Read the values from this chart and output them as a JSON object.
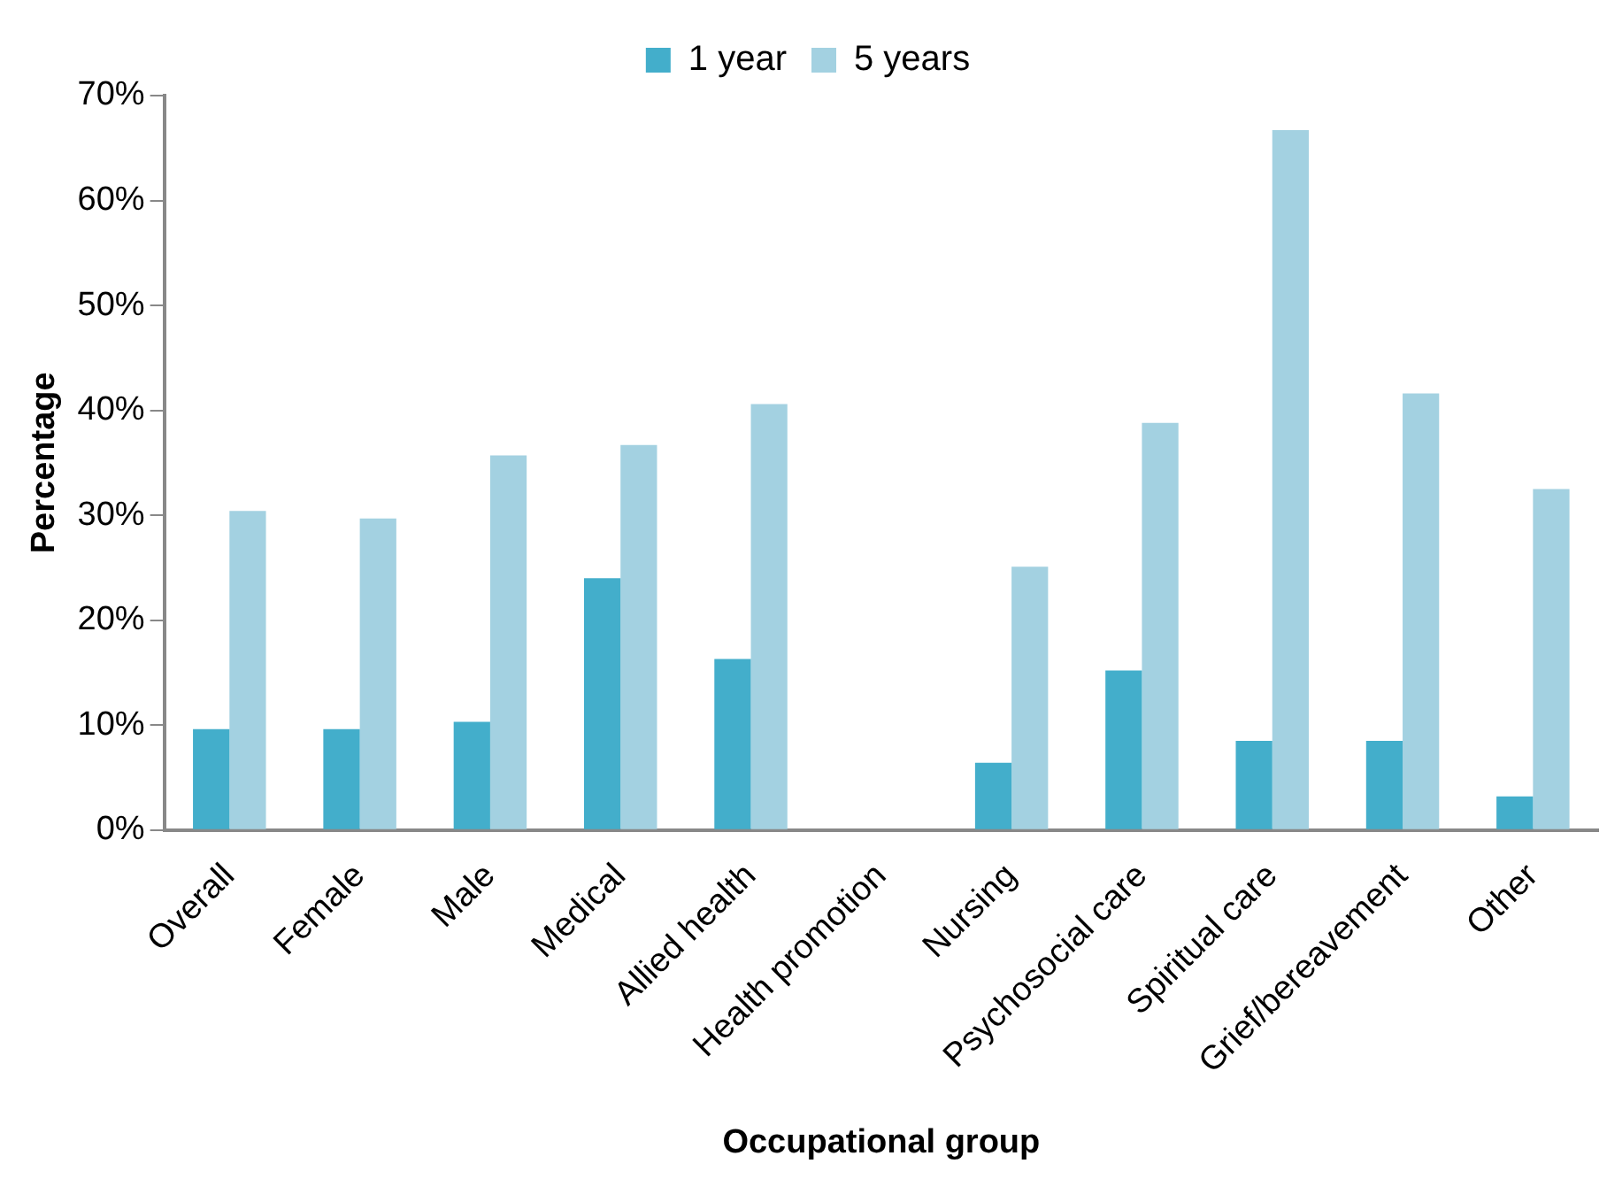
{
  "chart_data": {
    "type": "bar",
    "xlabel": "Occupational group",
    "ylabel": "Percentage",
    "categories": [
      "Overall",
      "Female",
      "Male",
      "Medical",
      "Allied health",
      "Health promotion",
      "Nursing",
      "Psychosocial care",
      "Spiritual care",
      "Grief/bereavement",
      "Other"
    ],
    "series": [
      {
        "name": "1 year",
        "color": "#43aecb",
        "values": [
          9.6,
          9.6,
          10.3,
          24.0,
          16.3,
          0,
          6.4,
          15.2,
          8.5,
          8.5,
          3.2
        ]
      },
      {
        "name": "5 years",
        "color": "#a3d1e1",
        "values": [
          30.4,
          29.7,
          35.7,
          36.7,
          40.6,
          0,
          25.1,
          38.8,
          66.7,
          41.6,
          32.5
        ]
      }
    ],
    "ylim": [
      0,
      70
    ],
    "yticks": [
      {
        "value": 0,
        "label": "0%"
      },
      {
        "value": 10,
        "label": "10%"
      },
      {
        "value": 20,
        "label": "20%"
      },
      {
        "value": 30,
        "label": "30%"
      },
      {
        "value": 40,
        "label": "40%"
      },
      {
        "value": 50,
        "label": "50%"
      },
      {
        "value": 60,
        "label": "60%"
      },
      {
        "value": 70,
        "label": "70%"
      }
    ],
    "grid": false,
    "legend": "top"
  }
}
